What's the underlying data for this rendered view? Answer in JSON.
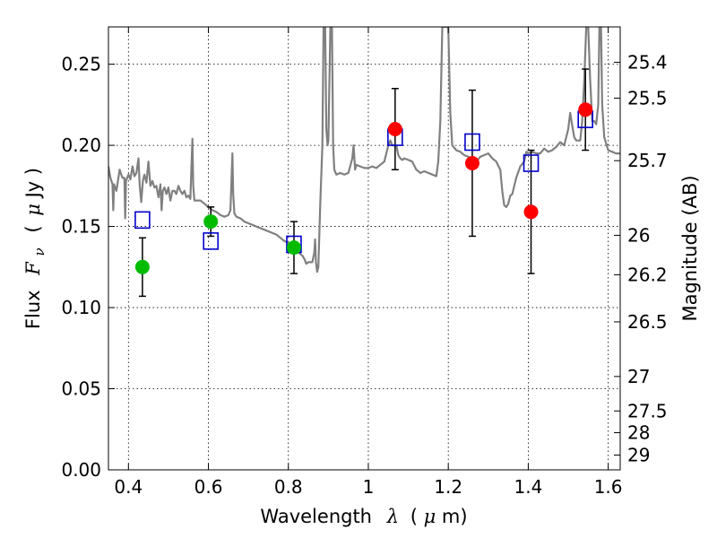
{
  "chart_data": {
    "type": "scatter",
    "xlabel_main": "Wavelength",
    "xlabel_symbol": "λ",
    "xlabel_unit_open": "(",
    "xlabel_unit_mu": "μ",
    "xlabel_unit_rest": "m)",
    "ylabel_main": "Flux",
    "ylabel_symbol": "F",
    "ylabel_symbol_sub": "ν",
    "ylabel_unit_open": "(",
    "ylabel_unit_mu": "μ",
    "ylabel_unit_rest": "Jy )",
    "ylabel_right": "Magnitude (AB)",
    "xlim": [
      0.35,
      1.63
    ],
    "ylim": [
      0.0,
      0.273
    ],
    "grid": true,
    "x_ticks": [
      {
        "value": 0.4,
        "label": "0.4"
      },
      {
        "value": 0.6,
        "label": "0.6"
      },
      {
        "value": 0.8,
        "label": "0.8"
      },
      {
        "value": 1.0,
        "label": "1"
      },
      {
        "value": 1.2,
        "label": "1.2"
      },
      {
        "value": 1.4,
        "label": "1.4"
      },
      {
        "value": 1.6,
        "label": "1.6"
      }
    ],
    "y_ticks": [
      {
        "value": 0.0,
        "label": "0.00"
      },
      {
        "value": 0.05,
        "label": "0.05"
      },
      {
        "value": 0.1,
        "label": "0.10"
      },
      {
        "value": 0.15,
        "label": "0.15"
      },
      {
        "value": 0.2,
        "label": "0.20"
      },
      {
        "value": 0.25,
        "label": "0.25"
      }
    ],
    "right_ticks": [
      {
        "mag": 25.4,
        "label": "25.4"
      },
      {
        "mag": 25.5,
        "label": "25.5"
      },
      {
        "mag": 25.7,
        "label": "25.7"
      },
      {
        "mag": 26.0,
        "label": "26"
      },
      {
        "mag": 26.2,
        "label": "26.2"
      },
      {
        "mag": 26.5,
        "label": "26.5"
      },
      {
        "mag": 27.0,
        "label": "27"
      },
      {
        "mag": 27.5,
        "label": "27.5"
      },
      {
        "mag": 28.0,
        "label": "28"
      },
      {
        "mag": 29.0,
        "label": "29"
      }
    ],
    "observed_green": {
      "color": "#00bb00",
      "points": [
        {
          "x": 0.435,
          "y": 0.125,
          "err": 0.018
        },
        {
          "x": 0.606,
          "y": 0.153,
          "err": 0.009
        },
        {
          "x": 0.814,
          "y": 0.137,
          "err": 0.016
        }
      ]
    },
    "observed_red": {
      "color": "#ff0000",
      "points": [
        {
          "x": 1.067,
          "y": 0.21,
          "err": 0.025
        },
        {
          "x": 1.26,
          "y": 0.189,
          "err": 0.045
        },
        {
          "x": 1.407,
          "y": 0.159,
          "err": 0.038
        },
        {
          "x": 1.543,
          "y": 0.222,
          "err": 0.025
        }
      ]
    },
    "model_squares": {
      "color": "#0000cc",
      "points": [
        {
          "x": 0.435,
          "y": 0.154
        },
        {
          "x": 0.606,
          "y": 0.141
        },
        {
          "x": 0.814,
          "y": 0.139
        },
        {
          "x": 1.067,
          "y": 0.205
        },
        {
          "x": 1.26,
          "y": 0.202
        },
        {
          "x": 1.407,
          "y": 0.189
        },
        {
          "x": 1.543,
          "y": 0.216
        }
      ]
    },
    "template_spectrum": {
      "color": "#808080",
      "points": [
        [
          0.35,
          0.187
        ],
        [
          0.355,
          0.18
        ],
        [
          0.36,
          0.176
        ],
        [
          0.362,
          0.16
        ],
        [
          0.364,
          0.176
        ],
        [
          0.37,
          0.172
        ],
        [
          0.378,
          0.185
        ],
        [
          0.385,
          0.18
        ],
        [
          0.39,
          0.18
        ],
        [
          0.392,
          0.155
        ],
        [
          0.394,
          0.178
        ],
        [
          0.4,
          0.182
        ],
        [
          0.405,
          0.179
        ],
        [
          0.41,
          0.187
        ],
        [
          0.415,
          0.181
        ],
        [
          0.42,
          0.183
        ],
        [
          0.425,
          0.192
        ],
        [
          0.428,
          0.176
        ],
        [
          0.432,
          0.165
        ],
        [
          0.436,
          0.178
        ],
        [
          0.44,
          0.182
        ],
        [
          0.445,
          0.177
        ],
        [
          0.45,
          0.19
        ],
        [
          0.455,
          0.175
        ],
        [
          0.46,
          0.178
        ],
        [
          0.465,
          0.174
        ],
        [
          0.47,
          0.175
        ],
        [
          0.475,
          0.168
        ],
        [
          0.48,
          0.176
        ],
        [
          0.483,
          0.16
        ],
        [
          0.486,
          0.172
        ],
        [
          0.49,
          0.174
        ],
        [
          0.495,
          0.17
        ],
        [
          0.5,
          0.174
        ],
        [
          0.505,
          0.166
        ],
        [
          0.51,
          0.172
        ],
        [
          0.515,
          0.172
        ],
        [
          0.52,
          0.17
        ],
        [
          0.525,
          0.175
        ],
        [
          0.53,
          0.172
        ],
        [
          0.535,
          0.17
        ],
        [
          0.54,
          0.172
        ],
        [
          0.545,
          0.168
        ],
        [
          0.55,
          0.169
        ],
        [
          0.555,
          0.167
        ],
        [
          0.558,
          0.19
        ],
        [
          0.56,
          0.204
        ],
        [
          0.562,
          0.175
        ],
        [
          0.565,
          0.166
        ],
        [
          0.57,
          0.166
        ],
        [
          0.58,
          0.166
        ],
        [
          0.59,
          0.164
        ],
        [
          0.6,
          0.162
        ],
        [
          0.61,
          0.16
        ],
        [
          0.62,
          0.159
        ],
        [
          0.63,
          0.157
        ],
        [
          0.64,
          0.156
        ],
        [
          0.65,
          0.157
        ],
        [
          0.655,
          0.16
        ],
        [
          0.658,
          0.18
        ],
        [
          0.66,
          0.195
        ],
        [
          0.662,
          0.17
        ],
        [
          0.665,
          0.158
        ],
        [
          0.67,
          0.156
        ],
        [
          0.68,
          0.155
        ],
        [
          0.69,
          0.153
        ],
        [
          0.7,
          0.152
        ],
        [
          0.71,
          0.151
        ],
        [
          0.72,
          0.15
        ],
        [
          0.73,
          0.149
        ],
        [
          0.74,
          0.148
        ],
        [
          0.75,
          0.147
        ],
        [
          0.76,
          0.146
        ],
        [
          0.77,
          0.145
        ],
        [
          0.78,
          0.143
        ],
        [
          0.79,
          0.141
        ],
        [
          0.8,
          0.14
        ],
        [
          0.81,
          0.139
        ],
        [
          0.82,
          0.137
        ],
        [
          0.825,
          0.134
        ],
        [
          0.83,
          0.133
        ],
        [
          0.835,
          0.132
        ],
        [
          0.84,
          0.13
        ],
        [
          0.845,
          0.127
        ],
        [
          0.85,
          0.128
        ],
        [
          0.86,
          0.128
        ],
        [
          0.865,
          0.134
        ],
        [
          0.867,
          0.142
        ],
        [
          0.869,
          0.128
        ],
        [
          0.872,
          0.122
        ],
        [
          0.875,
          0.125
        ],
        [
          0.88,
          0.165
        ],
        [
          0.885,
          0.2
        ],
        [
          0.888,
          0.273
        ],
        [
          0.892,
          0.273
        ],
        [
          0.895,
          0.21
        ],
        [
          0.898,
          0.2
        ],
        [
          0.9,
          0.203
        ],
        [
          0.905,
          0.273
        ],
        [
          0.909,
          0.273
        ],
        [
          0.912,
          0.2
        ],
        [
          0.915,
          0.185
        ],
        [
          0.92,
          0.182
        ],
        [
          0.93,
          0.183
        ],
        [
          0.94,
          0.182
        ],
        [
          0.95,
          0.183
        ],
        [
          0.96,
          0.192
        ],
        [
          0.963,
          0.2
        ],
        [
          0.967,
          0.185
        ],
        [
          0.97,
          0.188
        ],
        [
          0.98,
          0.187
        ],
        [
          0.99,
          0.186
        ],
        [
          1.0,
          0.186
        ],
        [
          1.01,
          0.187
        ],
        [
          1.02,
          0.186
        ],
        [
          1.03,
          0.188
        ],
        [
          1.04,
          0.19
        ],
        [
          1.05,
          0.2
        ],
        [
          1.055,
          0.203
        ],
        [
          1.06,
          0.2
        ],
        [
          1.07,
          0.2
        ],
        [
          1.075,
          0.194
        ],
        [
          1.08,
          0.192
        ],
        [
          1.085,
          0.191
        ],
        [
          1.09,
          0.192
        ],
        [
          1.1,
          0.191
        ],
        [
          1.11,
          0.19
        ],
        [
          1.12,
          0.185
        ],
        [
          1.13,
          0.183
        ],
        [
          1.14,
          0.184
        ],
        [
          1.15,
          0.183
        ],
        [
          1.16,
          0.182
        ],
        [
          1.17,
          0.181
        ],
        [
          1.175,
          0.19
        ],
        [
          1.18,
          0.215
        ],
        [
          1.185,
          0.273
        ],
        [
          1.19,
          0.273
        ],
        [
          1.2,
          0.273
        ],
        [
          1.205,
          0.22
        ],
        [
          1.21,
          0.2
        ],
        [
          1.22,
          0.197
        ],
        [
          1.23,
          0.196
        ],
        [
          1.24,
          0.194
        ],
        [
          1.25,
          0.193
        ],
        [
          1.26,
          0.191
        ],
        [
          1.27,
          0.19
        ],
        [
          1.28,
          0.193
        ],
        [
          1.29,
          0.194
        ],
        [
          1.3,
          0.195
        ],
        [
          1.31,
          0.192
        ],
        [
          1.32,
          0.19
        ],
        [
          1.33,
          0.185
        ],
        [
          1.335,
          0.172
        ],
        [
          1.34,
          0.163
        ],
        [
          1.345,
          0.162
        ],
        [
          1.35,
          0.164
        ],
        [
          1.355,
          0.169
        ],
        [
          1.36,
          0.17
        ],
        [
          1.37,
          0.18
        ],
        [
          1.38,
          0.187
        ],
        [
          1.39,
          0.19
        ],
        [
          1.395,
          0.196
        ],
        [
          1.4,
          0.195
        ],
        [
          1.41,
          0.196
        ],
        [
          1.42,
          0.195
        ],
        [
          1.43,
          0.195
        ],
        [
          1.44,
          0.198
        ],
        [
          1.45,
          0.196
        ],
        [
          1.46,
          0.197
        ],
        [
          1.47,
          0.199
        ],
        [
          1.48,
          0.202
        ],
        [
          1.49,
          0.2
        ],
        [
          1.5,
          0.21
        ],
        [
          1.505,
          0.22
        ],
        [
          1.51,
          0.212
        ],
        [
          1.515,
          0.205
        ],
        [
          1.52,
          0.203
        ],
        [
          1.53,
          0.203
        ],
        [
          1.535,
          0.215
        ],
        [
          1.54,
          0.24
        ],
        [
          1.545,
          0.273
        ],
        [
          1.55,
          0.273
        ],
        [
          1.555,
          0.24
        ],
        [
          1.56,
          0.215
        ],
        [
          1.565,
          0.215
        ],
        [
          1.57,
          0.213
        ],
        [
          1.575,
          0.225
        ],
        [
          1.578,
          0.273
        ],
        [
          1.582,
          0.273
        ],
        [
          1.585,
          0.225
        ],
        [
          1.59,
          0.205
        ],
        [
          1.6,
          0.197
        ],
        [
          1.61,
          0.196
        ],
        [
          1.62,
          0.195
        ],
        [
          1.63,
          0.195
        ]
      ]
    }
  }
}
